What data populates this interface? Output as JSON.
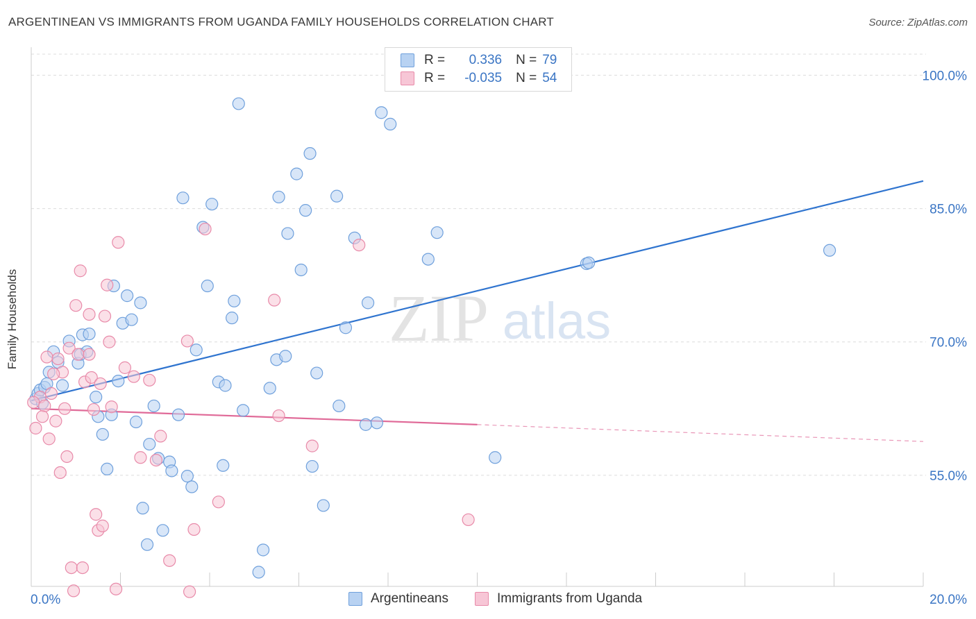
{
  "header": {
    "title": "ARGENTINEAN VS IMMIGRANTS FROM UGANDA FAMILY HOUSEHOLDS CORRELATION CHART",
    "source": "Source: ZipAtlas.com"
  },
  "watermark": {
    "zip": "ZIP",
    "atlas": "atlas"
  },
  "colors": {
    "blue_fill": "#b8d2f2",
    "blue_stroke": "#6fa0dc",
    "blue_line": "#2f74cf",
    "pink_fill": "#f7c6d6",
    "pink_stroke": "#e88aa9",
    "pink_line": "#e06a98",
    "axis_text": "#3a75c4"
  },
  "legend_top": [
    {
      "r_label": "R =",
      "r_value": "0.336",
      "n_label": "N =",
      "n_value": "79"
    },
    {
      "r_label": "R =",
      "r_value": "-0.035",
      "n_label": "N =",
      "n_value": "54"
    }
  ],
  "legend_bottom": [
    "Argentineans",
    "Immigrants from Uganda"
  ],
  "chart_data": {
    "type": "scatter",
    "title": "ARGENTINEAN VS IMMIGRANTS FROM UGANDA FAMILY HOUSEHOLDS CORRELATION CHART",
    "xlabel": "",
    "ylabel": "Family Households",
    "xlim": [
      0,
      20
    ],
    "ylim": [
      42.5,
      103
    ],
    "x_tick_labels": [
      "0.0%",
      "20.0%"
    ],
    "y_ticks": [
      55,
      70,
      85,
      100
    ],
    "y_tick_labels": [
      "55.0%",
      "70.0%",
      "85.0%",
      "100.0%"
    ],
    "grid": true,
    "legend_position": "top-center",
    "series": [
      {
        "name": "Argentineans",
        "color": "#6fa0dc",
        "trend": {
          "x": [
            0,
            20
          ],
          "y": [
            63.4,
            88.1
          ]
        },
        "points": [
          [
            0.1,
            63.6
          ],
          [
            0.15,
            64.2
          ],
          [
            0.2,
            64.6
          ],
          [
            0.25,
            63.1
          ],
          [
            0.3,
            64.9
          ],
          [
            0.35,
            65.3
          ],
          [
            0.4,
            66.6
          ],
          [
            0.5,
            68.9
          ],
          [
            0.6,
            67.7
          ],
          [
            0.7,
            65.1
          ],
          [
            0.85,
            70.1
          ],
          [
            1.05,
            67.6
          ],
          [
            1.1,
            68.6
          ],
          [
            1.15,
            70.8
          ],
          [
            1.25,
            68.9
          ],
          [
            1.3,
            70.9
          ],
          [
            1.45,
            63.8
          ],
          [
            1.5,
            61.6
          ],
          [
            1.6,
            59.6
          ],
          [
            1.7,
            55.7
          ],
          [
            1.8,
            61.8
          ],
          [
            1.85,
            76.3
          ],
          [
            1.95,
            65.6
          ],
          [
            2.05,
            72.1
          ],
          [
            2.15,
            75.2
          ],
          [
            2.25,
            72.5
          ],
          [
            2.35,
            61.0
          ],
          [
            2.45,
            74.4
          ],
          [
            2.5,
            51.3
          ],
          [
            2.6,
            47.2
          ],
          [
            2.65,
            58.5
          ],
          [
            2.75,
            62.8
          ],
          [
            2.85,
            56.9
          ],
          [
            2.95,
            48.8
          ],
          [
            3.1,
            56.5
          ],
          [
            3.15,
            55.5
          ],
          [
            3.3,
            61.8
          ],
          [
            3.4,
            86.2
          ],
          [
            3.5,
            54.9
          ],
          [
            3.6,
            53.7
          ],
          [
            3.7,
            69.1
          ],
          [
            3.85,
            82.9
          ],
          [
            3.95,
            76.3
          ],
          [
            4.05,
            85.5
          ],
          [
            4.2,
            65.5
          ],
          [
            4.3,
            56.1
          ],
          [
            4.35,
            65.1
          ],
          [
            4.5,
            72.7
          ],
          [
            4.55,
            74.6
          ],
          [
            4.65,
            96.8
          ],
          [
            4.75,
            62.3
          ],
          [
            5.2,
            46.6
          ],
          [
            5.1,
            44.1
          ],
          [
            5.35,
            64.8
          ],
          [
            5.5,
            68.0
          ],
          [
            5.55,
            86.3
          ],
          [
            5.7,
            68.4
          ],
          [
            5.75,
            82.2
          ],
          [
            5.95,
            88.9
          ],
          [
            6.05,
            78.1
          ],
          [
            6.15,
            84.8
          ],
          [
            6.25,
            91.2
          ],
          [
            6.3,
            56.0
          ],
          [
            6.4,
            66.5
          ],
          [
            6.55,
            51.6
          ],
          [
            6.85,
            86.4
          ],
          [
            6.9,
            62.8
          ],
          [
            7.05,
            71.6
          ],
          [
            7.25,
            81.7
          ],
          [
            7.5,
            60.7
          ],
          [
            7.55,
            74.4
          ],
          [
            7.75,
            60.9
          ],
          [
            7.85,
            95.8
          ],
          [
            8.05,
            94.5
          ],
          [
            8.9,
            79.3
          ],
          [
            9.1,
            82.3
          ],
          [
            10.4,
            57.0
          ],
          [
            12.45,
            78.8
          ],
          [
            12.5,
            78.9
          ],
          [
            17.9,
            80.3
          ]
        ]
      },
      {
        "name": "Immigrants from Uganda",
        "color": "#e88aa9",
        "trend": {
          "x": [
            0,
            10
          ],
          "y": [
            62.5,
            60.7
          ]
        },
        "trend_extension": {
          "x": [
            10,
            20
          ],
          "y": [
            60.7,
            58.8
          ]
        },
        "points": [
          [
            0.1,
            60.3
          ],
          [
            0.2,
            63.8
          ],
          [
            0.3,
            62.8
          ],
          [
            0.35,
            68.3
          ],
          [
            0.4,
            59.1
          ],
          [
            0.45,
            64.2
          ],
          [
            0.55,
            61.1
          ],
          [
            0.6,
            68.1
          ],
          [
            0.65,
            55.3
          ],
          [
            0.7,
            66.6
          ],
          [
            0.75,
            62.5
          ],
          [
            0.8,
            57.1
          ],
          [
            0.85,
            69.3
          ],
          [
            0.9,
            44.6
          ],
          [
            0.95,
            42.0
          ],
          [
            1.0,
            74.1
          ],
          [
            1.05,
            68.6
          ],
          [
            1.1,
            78.0
          ],
          [
            1.15,
            44.6
          ],
          [
            1.2,
            65.5
          ],
          [
            1.3,
            68.6
          ],
          [
            1.3,
            73.1
          ],
          [
            1.35,
            66.0
          ],
          [
            1.45,
            50.6
          ],
          [
            1.5,
            48.8
          ],
          [
            1.55,
            65.3
          ],
          [
            1.6,
            49.3
          ],
          [
            1.65,
            72.9
          ],
          [
            1.7,
            76.4
          ],
          [
            1.75,
            70.0
          ],
          [
            1.8,
            62.7
          ],
          [
            1.9,
            42.2
          ],
          [
            1.95,
            81.2
          ],
          [
            2.1,
            67.1
          ],
          [
            2.3,
            66.1
          ],
          [
            2.45,
            57.0
          ],
          [
            2.65,
            65.7
          ],
          [
            2.8,
            56.7
          ],
          [
            2.9,
            59.4
          ],
          [
            3.1,
            45.4
          ],
          [
            3.5,
            70.1
          ],
          [
            3.55,
            41.9
          ],
          [
            3.65,
            48.9
          ],
          [
            3.9,
            82.7
          ],
          [
            4.2,
            52.0
          ],
          [
            5.45,
            74.7
          ],
          [
            5.55,
            61.7
          ],
          [
            6.3,
            58.3
          ],
          [
            7.35,
            80.9
          ],
          [
            9.8,
            50.0
          ],
          [
            0.05,
            63.2
          ],
          [
            0.25,
            61.6
          ],
          [
            0.5,
            66.4
          ],
          [
            1.4,
            62.4
          ]
        ]
      }
    ]
  }
}
